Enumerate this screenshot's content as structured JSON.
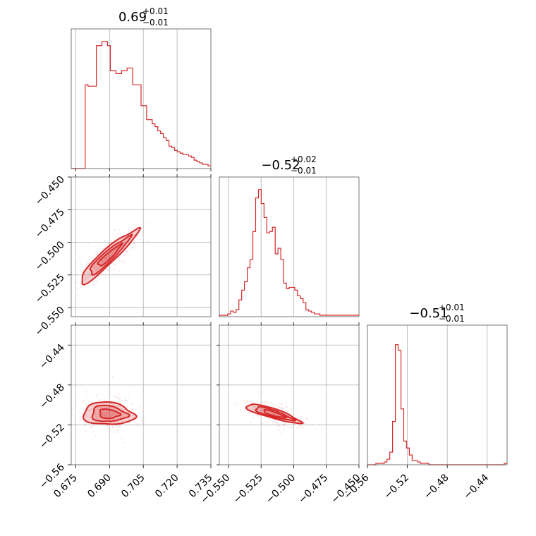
{
  "chart_data": {
    "type": "corner",
    "color": "#d62728",
    "parameters": [
      {
        "title_main": "0.69",
        "title_upper": "+0.01",
        "title_lower": "−0.01",
        "range": [
          0.673,
          0.735
        ],
        "ticks": [
          "0.675",
          "0.690",
          "0.705",
          "0.720",
          "0.735"
        ],
        "tick_values": [
          0.675,
          0.69,
          0.705,
          0.72,
          0.735
        ],
        "hist_edges_start": 0.673,
        "hist_bin_width": 0.00124,
        "hist_counts": [
          0,
          0,
          0,
          0,
          0,
          0.6,
          0.59,
          0.59,
          0.59,
          0.88,
          0.88,
          0.91,
          0.91,
          0.88,
          0.7,
          0.7,
          0.68,
          0.68,
          0.7,
          0.7,
          0.72,
          0.72,
          0.6,
          0.6,
          0.6,
          0.45,
          0.45,
          0.35,
          0.35,
          0.32,
          0.3,
          0.27,
          0.25,
          0.22,
          0.2,
          0.16,
          0.15,
          0.13,
          0.12,
          0.11,
          0.1,
          0.1,
          0.09,
          0.08,
          0.06,
          0.05,
          0.04,
          0.03,
          0.03,
          0.02,
          0.02
        ]
      },
      {
        "title_main": "−0.52",
        "title_upper": "+0.02",
        "title_lower": "−0.01",
        "range": [
          -0.557,
          -0.45
        ],
        "ticks": [
          "−0.550",
          "−0.525",
          "−0.500",
          "−0.475",
          "−0.450"
        ],
        "tick_values": [
          -0.55,
          -0.525,
          -0.5,
          -0.475,
          -0.45
        ],
        "hist_edges_start": -0.557,
        "hist_bin_width": 0.00214,
        "hist_counts": [
          0.01,
          0.01,
          0.01,
          0.02,
          0.04,
          0.03,
          0.05,
          0.12,
          0.19,
          0.25,
          0.35,
          0.41,
          0.61,
          0.85,
          0.91,
          0.81,
          0.71,
          0.6,
          0.61,
          0.64,
          0.45,
          0.49,
          0.41,
          0.24,
          0.2,
          0.21,
          0.21,
          0.19,
          0.15,
          0.13,
          0.1,
          0.05,
          0.04,
          0.03,
          0.02,
          0.02,
          0.01,
          0.01,
          0.01,
          0.01,
          0.01,
          0.01,
          0.01,
          0.01,
          0.01,
          0.01,
          0.01,
          0.01,
          0.01,
          0.01
        ]
      },
      {
        "title_main": "−0.51",
        "title_upper": "+0.01",
        "title_lower": "−0.01",
        "range": [
          -0.56,
          -0.42
        ],
        "ticks": [
          "−0.56",
          "−0.52",
          "−0.48",
          "−0.44"
        ],
        "tick_values": [
          -0.56,
          -0.52,
          -0.48,
          -0.44
        ],
        "hist_edges_start": -0.56,
        "hist_bin_width": 0.0028,
        "hist_counts": [
          0,
          0,
          0,
          0.01,
          0.01,
          0.01,
          0.02,
          0.04,
          0.09,
          0.31,
          0.86,
          0.82,
          0.4,
          0.17,
          0.12,
          0.07,
          0.03,
          0.03,
          0.02,
          0.01,
          0.01,
          0.01,
          0,
          0,
          0,
          0,
          0,
          0,
          0,
          0,
          0,
          0,
          0,
          0,
          0,
          0,
          0,
          0,
          0,
          0,
          0,
          0,
          0,
          0,
          0,
          0,
          0,
          0,
          0,
          0.01
        ]
      }
    ],
    "y_ticks_row1": [
      "−0.450",
      "−0.475",
      "−0.500",
      "−0.525",
      "−0.550"
    ],
    "y_ticks_row1_values": [
      -0.45,
      -0.475,
      -0.5,
      -0.525,
      -0.55
    ],
    "y_ticks_row2": [
      "−0.44",
      "−0.48",
      "−0.52",
      "−0.56"
    ],
    "y_ticks_row2_values": [
      -0.44,
      -0.48,
      -0.52,
      -0.56
    ],
    "grid": true
  }
}
